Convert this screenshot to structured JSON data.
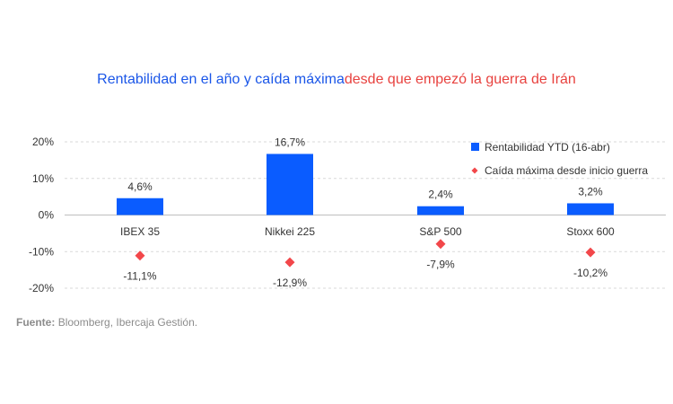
{
  "title_part1": "Rentabilidad en el año y caída máxima",
  "title_part2": "desde que empezó la guerra de Irán",
  "source_label": "Fuente:",
  "source_text": "Bloomberg, Ibercaja Gestión.",
  "colors": {
    "bar": "#0a5cff",
    "marker": "#f2474a",
    "title1": "#1a56e8",
    "title2": "#e8423f"
  },
  "chart_data": {
    "type": "bar",
    "categories": [
      "IBEX 35",
      "Nikkei 225",
      "S&P 500",
      "Stoxx 600"
    ],
    "series": [
      {
        "name": "Rentabilidad YTD (16-abr)",
        "kind": "bar",
        "values": [
          4.6,
          16.7,
          2.4,
          3.2
        ],
        "labels": [
          "4,6%",
          "16,7%",
          "2,4%",
          "3,2%"
        ]
      },
      {
        "name": "Caída máxima desde inicio guerra",
        "kind": "marker",
        "values": [
          -11.1,
          -12.9,
          -7.9,
          -10.2
        ],
        "labels": [
          "-11,1%",
          "-12,9%",
          "-7,9%",
          "-10,2%"
        ]
      }
    ],
    "ylim": [
      -20,
      20
    ],
    "yticks": [
      20,
      10,
      0,
      -10,
      -20
    ],
    "ytick_labels": [
      "20%",
      "10%",
      "0%",
      "-10%",
      "-20%"
    ],
    "grid": true,
    "legend_position": "top-right"
  }
}
